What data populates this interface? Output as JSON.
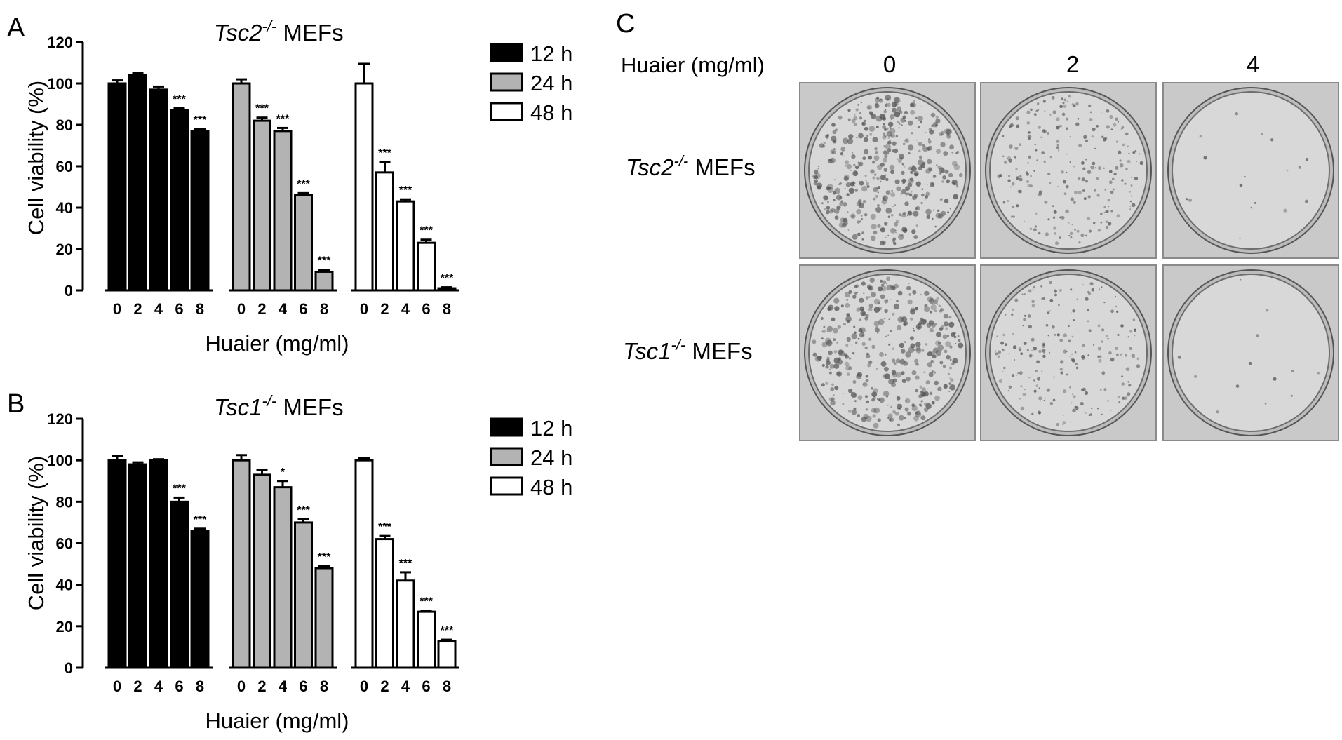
{
  "panels": {
    "A": {
      "letter": "A",
      "title_gene": "Tsc2",
      "title_sup": "-/-",
      "title_rest": " MEFs",
      "ylabel": "Cell viability (%)",
      "xlabel": "Huaier (mg/ml)"
    },
    "B": {
      "letter": "B",
      "title_gene": "Tsc1",
      "title_sup": "-/-",
      "title_rest": " MEFs",
      "ylabel": "Cell viability (%)",
      "xlabel": "Huaier (mg/ml)"
    },
    "C": {
      "letter": "C",
      "dose_label": "Huaier (mg/ml)",
      "doses": [
        "0",
        "2",
        "4"
      ],
      "rows": [
        {
          "gene": "Tsc2",
          "sup": "-/-",
          "rest": " MEFs",
          "colony_density": [
            1.0,
            0.55,
            0.04
          ]
        },
        {
          "gene": "Tsc1",
          "sup": "-/-",
          "rest": " MEFs",
          "colony_density": [
            0.9,
            0.5,
            0.03
          ]
        }
      ]
    }
  },
  "chart_data": [
    {
      "type": "bar",
      "panel": "A",
      "title": "Tsc2-/- MEFs",
      "xlabel": "Huaier (mg/ml)",
      "ylabel": "Cell viability (%)",
      "ylim": [
        0,
        120
      ],
      "yticks": [
        "0",
        "20",
        "40",
        "60",
        "80",
        "100",
        "120"
      ],
      "categories": [
        "0",
        "2",
        "4",
        "6",
        "8"
      ],
      "legend_position": "right",
      "series": [
        {
          "name": "12 h",
          "color": "#000000",
          "values": [
            100,
            104,
            97,
            87,
            77
          ],
          "errors": [
            1.5,
            1,
            1.5,
            1,
            1
          ],
          "sig": [
            "",
            "",
            "",
            "***",
            "***"
          ]
        },
        {
          "name": "24 h",
          "color": "#b3b3b3",
          "values": [
            100,
            82,
            77,
            46,
            9
          ],
          "errors": [
            2,
            1.5,
            1.5,
            1,
            1
          ],
          "sig": [
            "",
            "***",
            "***",
            "***",
            "***"
          ]
        },
        {
          "name": "48 h",
          "color": "#ffffff",
          "values": [
            100,
            57,
            43,
            23,
            1
          ],
          "errors": [
            9.5,
            5,
            1,
            1.5,
            0.5
          ],
          "sig": [
            "",
            "***",
            "***",
            "***",
            "***"
          ]
        }
      ]
    },
    {
      "type": "bar",
      "panel": "B",
      "title": "Tsc1-/- MEFs",
      "xlabel": "Huaier (mg/ml)",
      "ylabel": "Cell viability (%)",
      "ylim": [
        0,
        120
      ],
      "yticks": [
        "0",
        "20",
        "40",
        "60",
        "80",
        "100",
        "120"
      ],
      "categories": [
        "0",
        "2",
        "4",
        "6",
        "8"
      ],
      "legend_position": "right",
      "series": [
        {
          "name": "12 h",
          "color": "#000000",
          "values": [
            100,
            98,
            100,
            80,
            66
          ],
          "errors": [
            2,
            1,
            0.5,
            2,
            1
          ],
          "sig": [
            "",
            "",
            "",
            "***",
            "***"
          ]
        },
        {
          "name": "24 h",
          "color": "#b3b3b3",
          "values": [
            100,
            93,
            87,
            70,
            48
          ],
          "errors": [
            2.5,
            2.5,
            3,
            1.5,
            1
          ],
          "sig": [
            "",
            "",
            "*",
            "***",
            "***"
          ]
        },
        {
          "name": "48 h",
          "color": "#ffffff",
          "values": [
            100,
            62,
            42,
            27,
            13
          ],
          "errors": [
            1,
            1.5,
            4,
            0.5,
            0.5
          ],
          "sig": [
            "",
            "***",
            "***",
            "***",
            "***"
          ]
        }
      ]
    }
  ]
}
